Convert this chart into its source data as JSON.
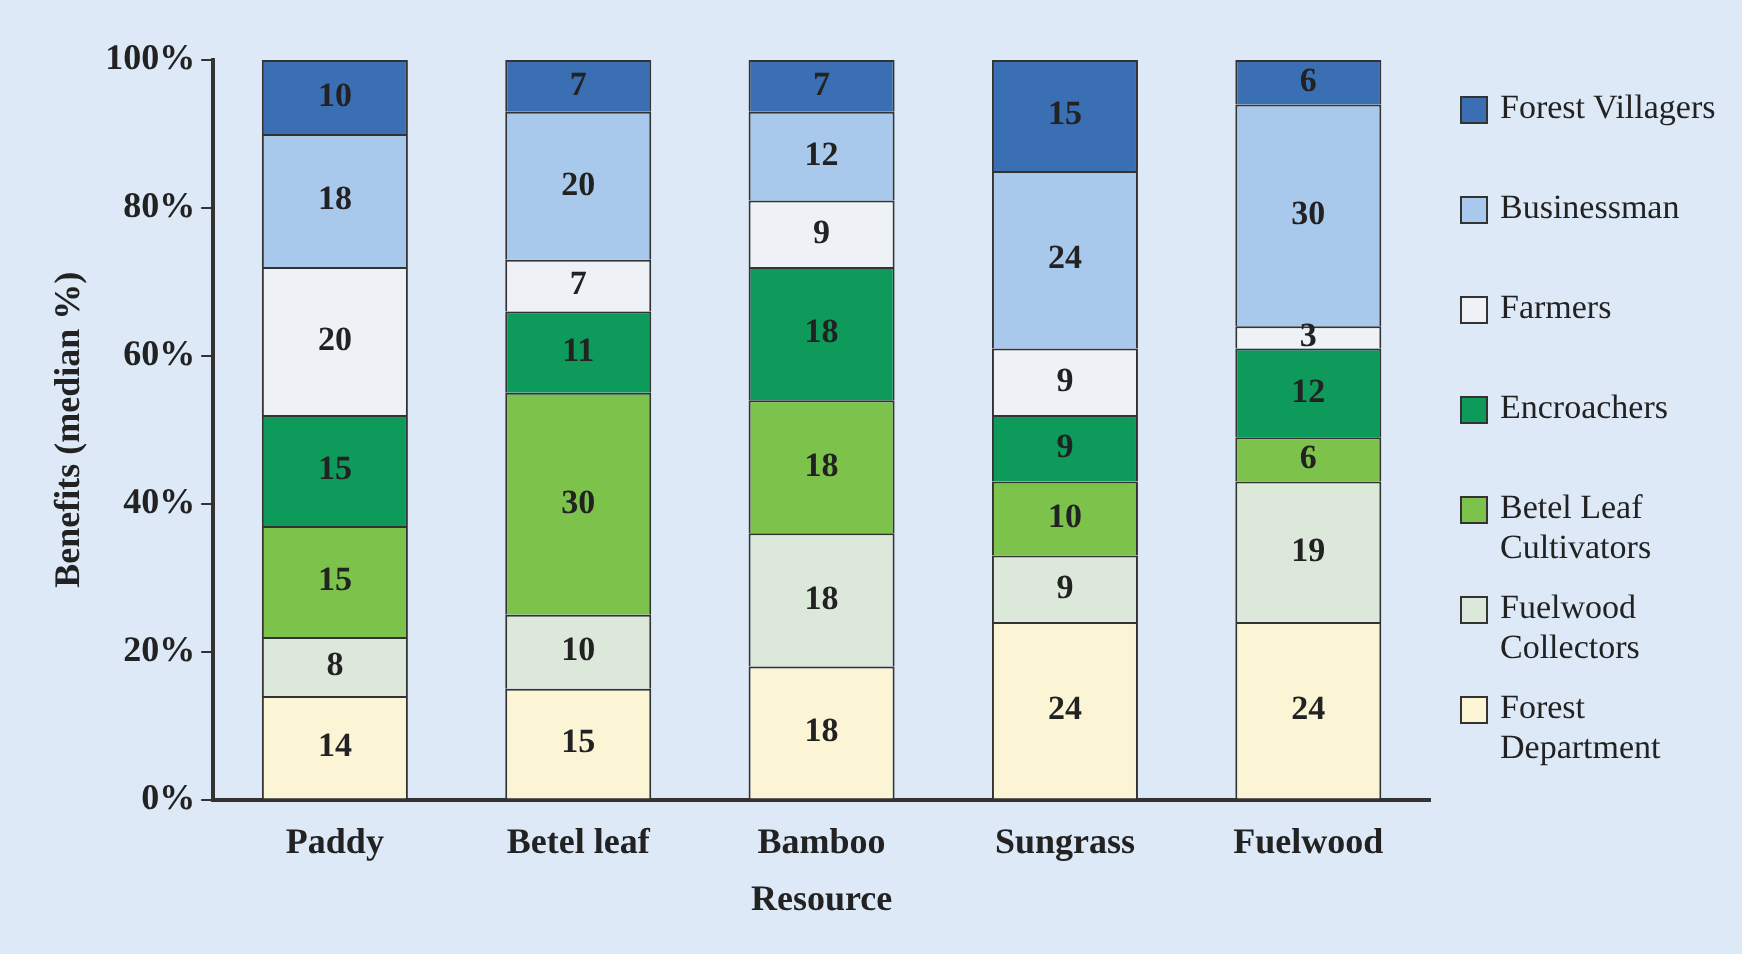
{
  "chart_data": {
    "type": "bar",
    "stacked": true,
    "xlabel": "Resource",
    "ylabel": "Benefits (median %)",
    "categories": [
      "Paddy",
      "Betel leaf",
      "Bamboo",
      "Sungrass",
      "Fuelwood"
    ],
    "ylim": [
      0,
      100
    ],
    "yticks": [
      {
        "value": 0,
        "label": "0%"
      },
      {
        "value": 20,
        "label": "20%"
      },
      {
        "value": 40,
        "label": "40%"
      },
      {
        "value": 60,
        "label": "60%"
      },
      {
        "value": 80,
        "label": "80%"
      },
      {
        "value": 100,
        "label": "100%"
      }
    ],
    "grid": false,
    "legend": "right",
    "data_labels": true,
    "series": [
      {
        "name": "Forest Department",
        "color": "#fbf5d6",
        "values": [
          14,
          15,
          18,
          24,
          24
        ]
      },
      {
        "name": "Fuelwood Collectors",
        "color": "#dbe8da",
        "values": [
          8,
          10,
          18,
          9,
          19
        ]
      },
      {
        "name": "Betel Leaf Cultivators",
        "color": "#7dc24b",
        "values": [
          15,
          30,
          18,
          10,
          6
        ]
      },
      {
        "name": "Encroachers",
        "color": "#0e9a5b",
        "values": [
          15,
          11,
          18,
          9,
          12
        ]
      },
      {
        "name": "Farmers",
        "color": "#eef2f6",
        "values": [
          20,
          7,
          9,
          9,
          3
        ]
      },
      {
        "name": "Businessman",
        "color": "#a9c9ec",
        "values": [
          18,
          20,
          12,
          24,
          30
        ]
      },
      {
        "name": "Forest Villagers",
        "color": "#3b6fb4",
        "values": [
          10,
          7,
          7,
          15,
          6
        ]
      }
    ]
  }
}
